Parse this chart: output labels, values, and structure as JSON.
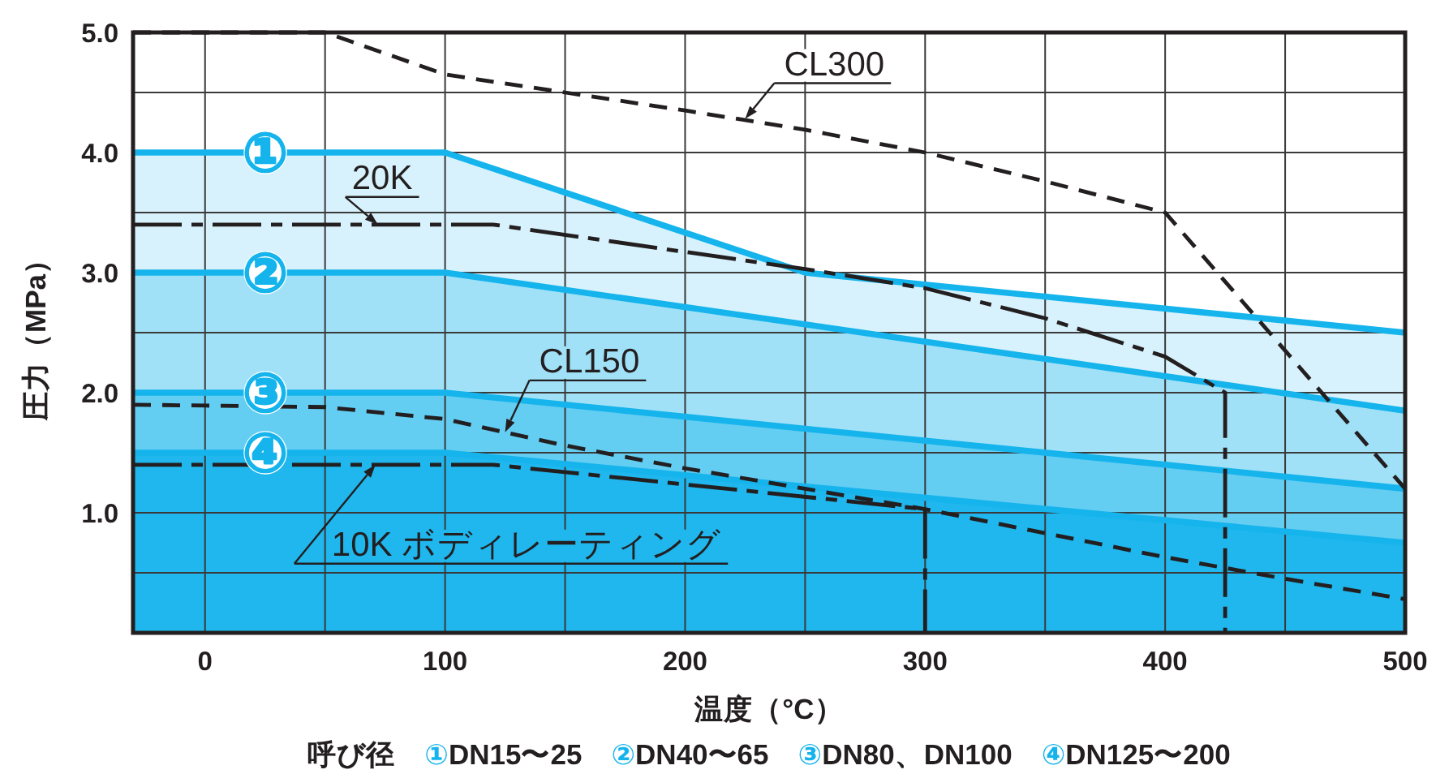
{
  "chart_data": {
    "type": "area",
    "xlabel": "温度（°C）",
    "ylabel": "圧力（MPa）",
    "grid": true,
    "xlim": [
      -30,
      500
    ],
    "xticks": [
      0,
      {
        "value": 50,
        "label": null
      },
      100,
      {
        "value": 150,
        "label": null
      },
      200,
      {
        "value": 250,
        "label": null
      },
      300,
      {
        "value": 350,
        "label": null
      },
      400,
      {
        "value": 450,
        "label": null
      },
      500
    ],
    "ylim": [
      0,
      5
    ],
    "yticks": [
      {
        "value": 0.5,
        "label": null
      },
      {
        "value": 1,
        "label": "1.0"
      },
      {
        "value": 1.5,
        "label": null
      },
      {
        "value": 2,
        "label": "2.0"
      },
      {
        "value": 2.5,
        "label": null
      },
      {
        "value": 3,
        "label": "3.0"
      },
      {
        "value": 3.5,
        "label": null
      },
      {
        "value": 4,
        "label": "4.0"
      },
      {
        "value": 4.5,
        "label": null
      },
      {
        "value": 5,
        "label": "5.0"
      }
    ],
    "series": [
      {
        "name": "①",
        "color": "#16b4ec",
        "x": [
          -30,
          100,
          250,
          500
        ],
        "values": [
          4.0,
          4.0,
          3.0,
          2.5
        ]
      },
      {
        "name": "②",
        "color": "#16b4ec",
        "x": [
          -30,
          100,
          500
        ],
        "values": [
          3.0,
          3.0,
          1.85
        ]
      },
      {
        "name": "③",
        "color": "#16b4ec",
        "x": [
          -30,
          100,
          500
        ],
        "values": [
          2.0,
          2.0,
          1.2
        ]
      },
      {
        "name": "④",
        "color": "#16b4ec",
        "x": [
          -30,
          100,
          500
        ],
        "values": [
          1.5,
          1.5,
          0.75
        ]
      },
      {
        "type": "line",
        "color": "#231f20",
        "line_style": "dashed",
        "x": [
          -30,
          50,
          100,
          150,
          200,
          250,
          300,
          350,
          400,
          500
        ],
        "values": [
          5.0,
          5.0,
          4.65,
          4.5,
          4.35,
          4.19,
          4.0,
          3.76,
          3.5,
          1.2
        ]
      },
      {
        "type": "line",
        "color": "#231f20",
        "line_style": "dashdot",
        "x": [
          -30,
          120,
          250,
          300,
          350,
          400,
          425,
          425
        ],
        "values": [
          3.4,
          3.4,
          3.03,
          2.87,
          2.62,
          2.3,
          2.0,
          0
        ]
      },
      {
        "type": "line",
        "color": "#231f20",
        "line_style": "dashed",
        "x": [
          -30,
          50,
          100,
          150,
          200,
          250,
          300,
          350,
          400,
          450,
          500
        ],
        "values": [
          1.9,
          1.88,
          1.78,
          1.56,
          1.37,
          1.2,
          1.03,
          0.83,
          0.63,
          0.45,
          0.28
        ]
      },
      {
        "type": "line",
        "color": "#231f20",
        "line_style": "dashdot",
        "x": [
          -30,
          120,
          300,
          300
        ],
        "values": [
          1.4,
          1.4,
          1.03,
          0
        ]
      }
    ],
    "annotations": [
      {
        "text": "CL300",
        "x": 225,
        "y": 4.28
      },
      {
        "text": "20K",
        "x": 72,
        "y": 3.4
      },
      {
        "text": "CL150",
        "x": 125,
        "y": 1.67
      },
      {
        "text": "10K ボディレーティング",
        "x": 71,
        "y": 1.4
      },
      "呼び径　①DN15〜25　②DN40〜65　③DN80、DN100　④DN125〜200"
    ]
  }
}
